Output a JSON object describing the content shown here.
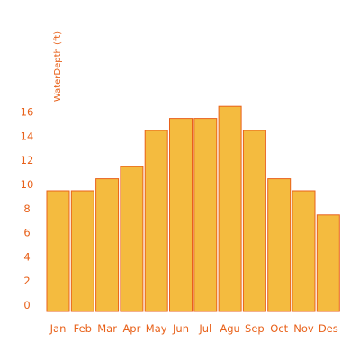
{
  "chart_data": {
    "type": "bar",
    "title": "",
    "xlabel": "",
    "ylabel": "WaterDepth (ft)",
    "categories": [
      "Jan",
      "Feb",
      "Mar",
      "Apr",
      "May",
      "Jun",
      "Jul",
      "Agu",
      "Sep",
      "Oct",
      "Nov",
      "Des"
    ],
    "values": [
      10,
      10,
      11,
      12,
      15,
      16,
      16,
      17,
      15,
      11,
      10,
      8
    ],
    "y_ticks": [
      0,
      2,
      4,
      6,
      8,
      10,
      12,
      14,
      16
    ],
    "ylim": [
      0,
      18
    ],
    "grid": false,
    "legend": "none",
    "colors": {
      "bar_fill": "#f4bb3f",
      "bar_stroke": "#e8611a",
      "tick_text": "#e8611a"
    }
  }
}
